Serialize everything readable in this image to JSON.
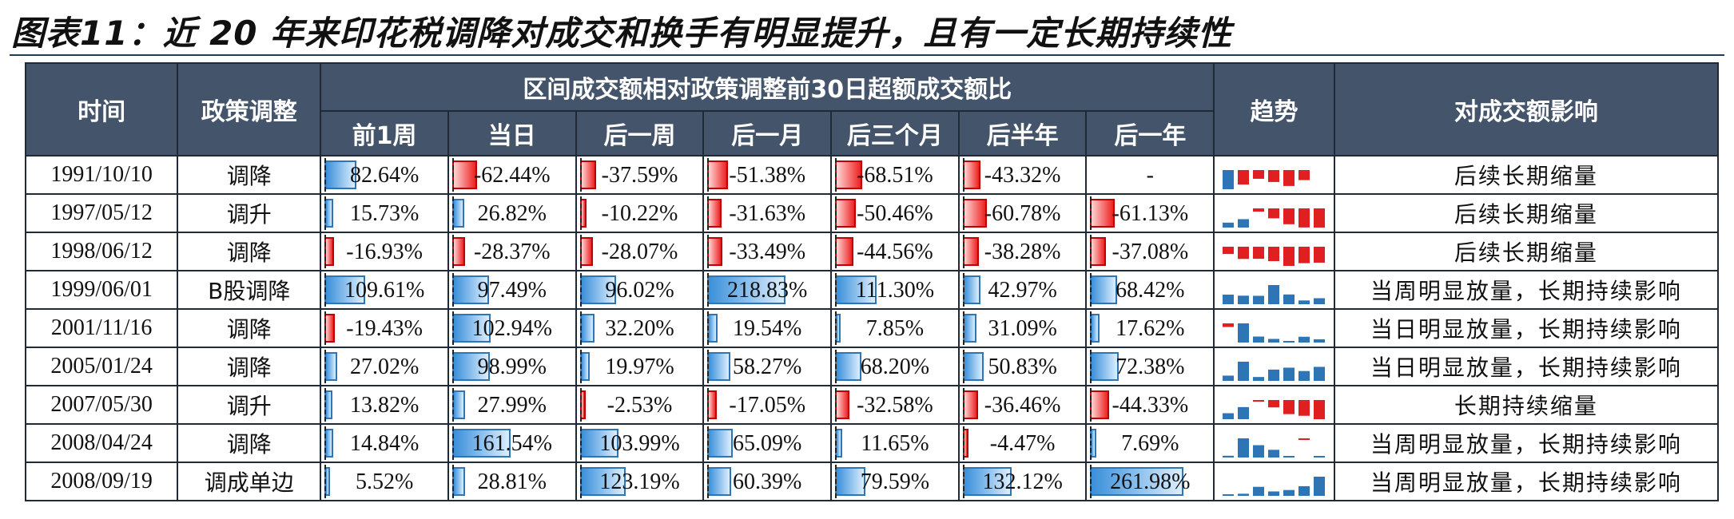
{
  "title": "图表11：近 20 年来印花税调降对成交和换手有明显提升，且有一定长期持续性",
  "headers": {
    "time": "时间",
    "policy": "政策调整",
    "group": "区间成交额相对政策调整前30日超额成交额比",
    "periods": [
      "前1周",
      "当日",
      "后一周",
      "后一月",
      "后三个月",
      "后半年",
      "后一年"
    ],
    "trend": "趋势",
    "impact": "对成交额影响"
  },
  "colors": {
    "positive": "#2e75b6",
    "negative": "#e02020",
    "header": "#44546a"
  },
  "rows": [
    {
      "date": "1991/10/10",
      "policy": "调降",
      "values": [
        "82.64%",
        "-62.44%",
        "-37.59%",
        "-51.38%",
        "-68.51%",
        "-43.32%",
        "-"
      ],
      "impact": "后续长期缩量"
    },
    {
      "date": "1997/05/12",
      "policy": "调升",
      "values": [
        "15.73%",
        "26.82%",
        "-10.22%",
        "-31.63%",
        "-50.46%",
        "-60.78%",
        "-61.13%"
      ],
      "impact": "后续长期缩量"
    },
    {
      "date": "1998/06/12",
      "policy": "调降",
      "values": [
        "-16.93%",
        "-28.37%",
        "-28.07%",
        "-33.49%",
        "-44.56%",
        "-38.28%",
        "-37.08%"
      ],
      "impact": "后续长期缩量"
    },
    {
      "date": "1999/06/01",
      "policy": "B股调降",
      "values": [
        "109.61%",
        "97.49%",
        "96.02%",
        "218.83%",
        "111.30%",
        "42.97%",
        "68.42%"
      ],
      "impact": "当周明显放量，长期持续影响"
    },
    {
      "date": "2001/11/16",
      "policy": "调降",
      "values": [
        "-19.43%",
        "102.94%",
        "32.20%",
        "19.54%",
        "7.85%",
        "31.09%",
        "17.62%"
      ],
      "impact": "当日明显放量，长期持续影响"
    },
    {
      "date": "2005/01/24",
      "policy": "调降",
      "values": [
        "27.02%",
        "98.99%",
        "19.97%",
        "58.27%",
        "68.20%",
        "50.83%",
        "72.38%"
      ],
      "impact": "当日明显放量，长期持续影响"
    },
    {
      "date": "2007/05/30",
      "policy": "调升",
      "values": [
        "13.82%",
        "27.99%",
        "-2.53%",
        "-17.05%",
        "-32.58%",
        "-36.46%",
        "-44.33%"
      ],
      "impact": "长期持续缩量"
    },
    {
      "date": "2008/04/24",
      "policy": "调降",
      "values": [
        "14.84%",
        "161.54%",
        "103.99%",
        "65.09%",
        "11.65%",
        "-4.47%",
        "7.69%"
      ],
      "impact": "当周明显放量，长期持续影响"
    },
    {
      "date": "2008/09/19",
      "policy": "调成单边",
      "values": [
        "5.52%",
        "28.81%",
        "123.19%",
        "60.39%",
        "79.59%",
        "132.12%",
        "261.98%"
      ],
      "impact": "当周明显放量，长期持续影响"
    }
  ]
}
